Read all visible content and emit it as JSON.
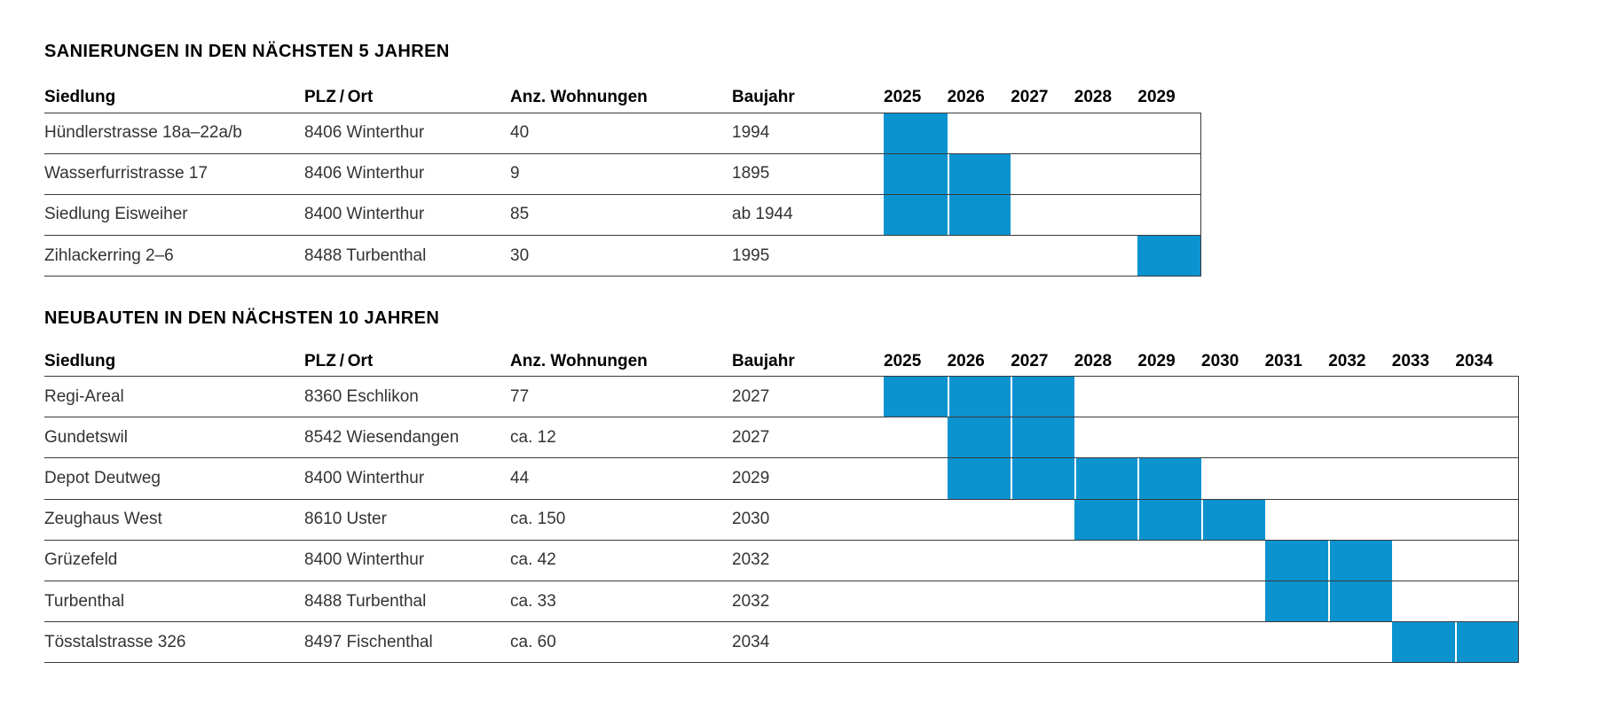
{
  "page": {
    "background": "#ffffff"
  },
  "colors": {
    "bar_blue": "#0b93d0",
    "rule_line": "#3a3a3a",
    "body_text": "#333333",
    "heading_text": "#000000"
  },
  "chart_data": [
    {
      "type": "table",
      "subtype": "gantt-timeline",
      "title": "SANIERUNGEN IN DEN NÄCHSTEN 5 JAHREN",
      "columns": [
        "Siedlung",
        "PLZ / Ort",
        "Anz. Wohnungen",
        "Baujahr"
      ],
      "years": [
        "2025",
        "2026",
        "2027",
        "2028",
        "2029"
      ],
      "bar_color": "#0b93d0",
      "legend_position": "none",
      "rows": [
        {
          "siedlung": "Hündlerstrasse 18a–22a/b",
          "plz_ort": "8406 Winterthur",
          "anz_wohnungen": "40",
          "baujahr": "1994",
          "bar_start": 2025,
          "bar_end": 2025
        },
        {
          "siedlung": "Wasserfurristrasse 17",
          "plz_ort": "8406 Winterthur",
          "anz_wohnungen": "9",
          "baujahr": "1895",
          "bar_start": 2025,
          "bar_end": 2026
        },
        {
          "siedlung": "Siedlung Eisweiher",
          "plz_ort": "8400 Winterthur",
          "anz_wohnungen": "85",
          "baujahr": "ab 1944",
          "bar_start": 2025,
          "bar_end": 2026
        },
        {
          "siedlung": "Zihlackerring 2–6",
          "plz_ort": "8488 Turbenthal",
          "anz_wohnungen": "30",
          "baujahr": "1995",
          "bar_start": 2029,
          "bar_end": 2029
        }
      ]
    },
    {
      "type": "table",
      "subtype": "gantt-timeline",
      "title": "NEUBAUTEN IN DEN NÄCHSTEN 10 JAHREN",
      "columns": [
        "Siedlung",
        "PLZ / Ort",
        "Anz. Wohnungen",
        "Baujahr"
      ],
      "years": [
        "2025",
        "2026",
        "2027",
        "2028",
        "2029",
        "2030",
        "2031",
        "2032",
        "2033",
        "2034"
      ],
      "bar_color": "#0b93d0",
      "legend_position": "none",
      "rows": [
        {
          "siedlung": "Regi-Areal",
          "plz_ort": "8360 Eschlikon",
          "anz_wohnungen": "77",
          "baujahr": "2027",
          "bar_start": 2025,
          "bar_end": 2027
        },
        {
          "siedlung": "Gundetswil",
          "plz_ort": "8542 Wiesendangen",
          "anz_wohnungen": "ca. 12",
          "baujahr": "2027",
          "bar_start": 2026,
          "bar_end": 2027
        },
        {
          "siedlung": "Depot Deutweg",
          "plz_ort": "8400 Winterthur",
          "anz_wohnungen": "44",
          "baujahr": "2029",
          "bar_start": 2026,
          "bar_end": 2029
        },
        {
          "siedlung": "Zeughaus West",
          "plz_ort": "8610 Uster",
          "anz_wohnungen": "ca. 150",
          "baujahr": "2030",
          "bar_start": 2028,
          "bar_end": 2030
        },
        {
          "siedlung": "Grüzefeld",
          "plz_ort": "8400 Winterthur",
          "anz_wohnungen": "ca. 42",
          "baujahr": "2032",
          "bar_start": 2031,
          "bar_end": 2032
        },
        {
          "siedlung": "Turbenthal",
          "plz_ort": "8488 Turbenthal",
          "anz_wohnungen": "ca. 33",
          "baujahr": "2032",
          "bar_start": 2031,
          "bar_end": 2032
        },
        {
          "siedlung": "Tösstalstrasse 326",
          "plz_ort": "8497 Fischenthal",
          "anz_wohnungen": "ca. 60",
          "baujahr": "2034",
          "bar_start": 2033,
          "bar_end": 2034
        }
      ]
    }
  ]
}
